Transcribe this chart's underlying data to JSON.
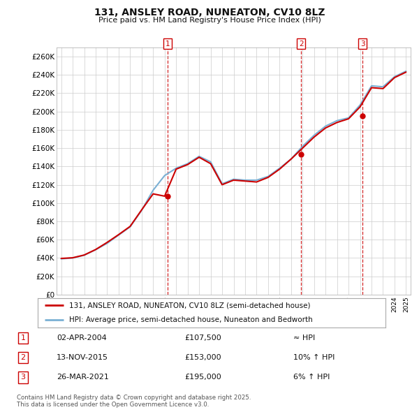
{
  "title": "131, ANSLEY ROAD, NUNEATON, CV10 8LZ",
  "subtitle": "Price paid vs. HM Land Registry's House Price Index (HPI)",
  "ylim": [
    0,
    270000
  ],
  "yticks": [
    0,
    20000,
    40000,
    60000,
    80000,
    100000,
    120000,
    140000,
    160000,
    180000,
    200000,
    220000,
    240000,
    260000
  ],
  "ytick_labels": [
    "£0",
    "£20K",
    "£40K",
    "£60K",
    "£80K",
    "£100K",
    "£120K",
    "£140K",
    "£160K",
    "£180K",
    "£200K",
    "£220K",
    "£240K",
    "£260K"
  ],
  "hpi_line_color": "#7ab0d4",
  "price_line_color": "#cc0000",
  "sale_marker_color": "#cc0000",
  "dashed_line_color": "#cc0000",
  "background_color": "#ffffff",
  "plot_bg_color": "#ffffff",
  "grid_color": "#cccccc",
  "sales": [
    {
      "num": 1,
      "date": "02-APR-2004",
      "price": 107500,
      "hpi_rel": "≈ HPI",
      "year": 2004.25
    },
    {
      "num": 2,
      "date": "13-NOV-2015",
      "price": 153000,
      "hpi_rel": "10% ↑ HPI",
      "year": 2015.87
    },
    {
      "num": 3,
      "date": "26-MAR-2021",
      "price": 195000,
      "hpi_rel": "6% ↑ HPI",
      "year": 2021.23
    }
  ],
  "legend_line1": "131, ANSLEY ROAD, NUNEATON, CV10 8LZ (semi-detached house)",
  "legend_line2": "HPI: Average price, semi-detached house, Nuneaton and Bedworth",
  "footnote": "Contains HM Land Registry data © Crown copyright and database right 2025.\nThis data is licensed under the Open Government Licence v3.0.",
  "hpi_data_years": [
    1995,
    1996,
    1997,
    1998,
    1999,
    2000,
    2001,
    2002,
    2003,
    2004,
    2005,
    2006,
    2007,
    2008,
    2009,
    2010,
    2011,
    2012,
    2013,
    2014,
    2015,
    2016,
    2017,
    2018,
    2019,
    2020,
    2021,
    2022,
    2023,
    2024,
    2025
  ],
  "hpi_data_values": [
    39000,
    40000,
    43000,
    49000,
    56000,
    65000,
    74000,
    92000,
    114000,
    130000,
    138000,
    143000,
    151000,
    145000,
    121000,
    126000,
    125000,
    125000,
    129000,
    138000,
    148000,
    162000,
    174000,
    184000,
    190000,
    193000,
    207000,
    228000,
    227000,
    238000,
    244000
  ],
  "price_data_years": [
    1995,
    1996,
    1997,
    1998,
    1999,
    2000,
    2001,
    2002,
    2003,
    2004,
    2005,
    2006,
    2007,
    2008,
    2009,
    2010,
    2011,
    2012,
    2013,
    2014,
    2015,
    2016,
    2017,
    2018,
    2019,
    2020,
    2021,
    2022,
    2023,
    2024,
    2025
  ],
  "price_data_values": [
    39500,
    40200,
    43200,
    49200,
    57000,
    65500,
    74500,
    92500,
    110000,
    107500,
    137000,
    142000,
    150000,
    143000,
    120000,
    125000,
    124000,
    123000,
    128000,
    137000,
    148000,
    160000,
    172000,
    182000,
    188000,
    192000,
    205000,
    226000,
    225000,
    237000,
    243000
  ]
}
